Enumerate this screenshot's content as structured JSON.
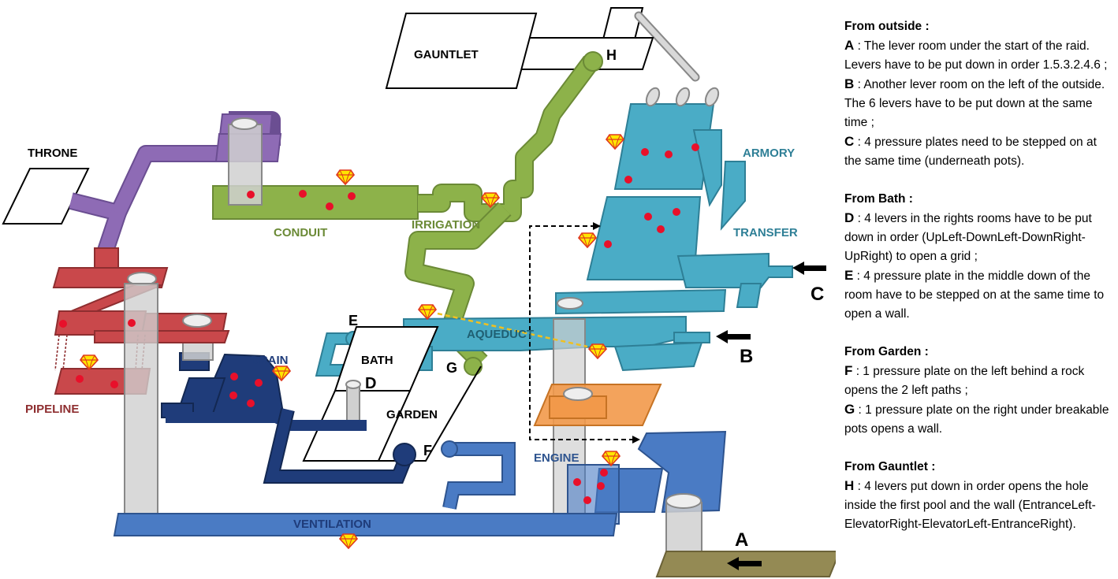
{
  "rooms": {
    "gauntlet": "GAUNTLET",
    "throne": "THRONE",
    "conduit": "CONDUIT",
    "irrigation": "IRRIGATION",
    "armory": "ARMORY",
    "transfer": "TRANSFER",
    "aqueduct": "AQUEDUCT",
    "bath": "BATH",
    "drain": "DRAIN",
    "pipeline": "PIPELINE",
    "garden": "GARDEN",
    "engine": "ENGINE",
    "ventilation": "VENTILATION"
  },
  "markers": {
    "A": "A",
    "B": "B",
    "C": "C",
    "D": "D",
    "E": "E",
    "F": "F",
    "G": "G",
    "H": "H"
  },
  "colors": {
    "purple": "#8E6BB5",
    "red": "#C9484B",
    "green": "#8DB24A",
    "aqua": "#4AACC6",
    "navy": "#1F3C7A",
    "blue": "#4A7BC4",
    "orange": "#F2994A",
    "olive": "#948A54",
    "pillar": "#D0D0D0",
    "dot": "#E8102A",
    "gem": "#FFE600"
  },
  "notes": [
    {
      "heading": "From outside :",
      "items": [
        {
          "key": "A",
          "text": " : The lever room under the start of the raid. Levers have to be put down in order 1.5.3.2.4.6 ;"
        },
        {
          "key": "B",
          "text": " : Another lever room on the left of the outside. The 6 levers have to be put down at the same time ;"
        },
        {
          "key": "C",
          "text": " : 4 pressure plates need to be stepped on at the same time (underneath pots)."
        }
      ]
    },
    {
      "heading": "From Bath :",
      "items": [
        {
          "key": "D",
          "text": " : 4 levers in the rights rooms have to be put down in order (UpLeft-DownLeft-DownRight-UpRight) to open a grid ;"
        },
        {
          "key": "E",
          "text": " : 4 pressure plate in the middle down of the room have to be stepped on at the same time to open a wall."
        }
      ]
    },
    {
      "heading": "From Garden :",
      "items": [
        {
          "key": "F",
          "text": " : 1 pressure plate on the left behind a rock opens the 2 left paths ;"
        },
        {
          "key": "G",
          "text": " : 1 pressure plate on the right under breakable pots opens a wall."
        }
      ]
    },
    {
      "heading": "From Gauntlet :",
      "items": [
        {
          "key": "H",
          "text": " : 4 levers put down in order opens the hole inside the first pool and the wall (EntranceLeft-ElevatorRight-ElevatorLeft-EntranceRight)."
        }
      ]
    }
  ]
}
